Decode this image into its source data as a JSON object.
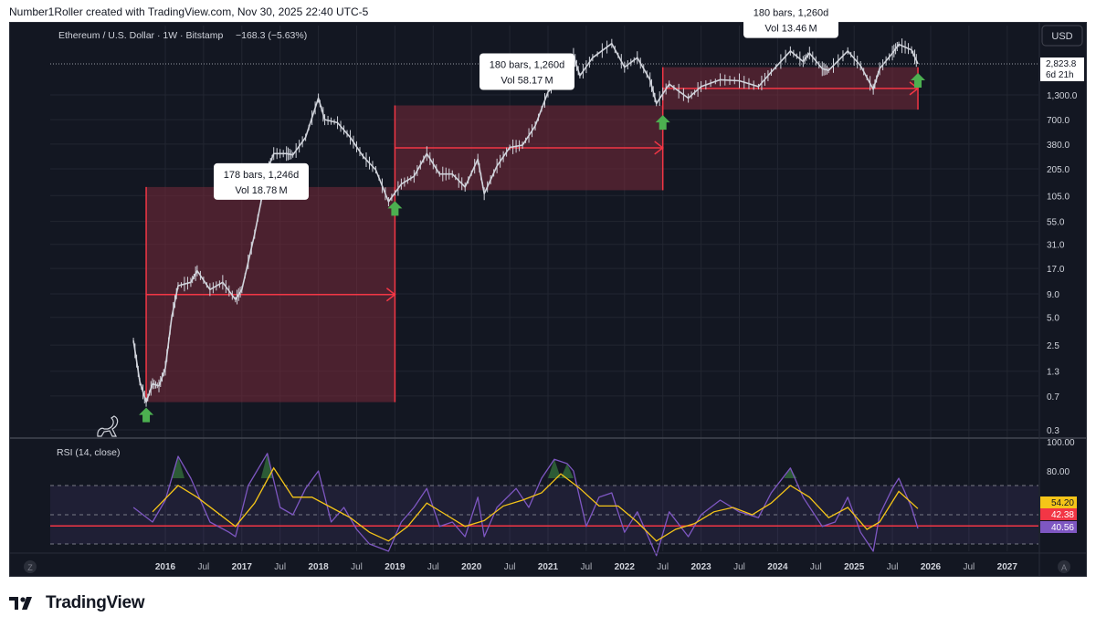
{
  "header": {
    "attribution": "Number1Roller created with TradingView.com, Nov 30, 2025 22:40 UTC-5"
  },
  "chart_header": {
    "symbol_line": "Ethereum / U.S. Dollar · 1W · Bitstamp",
    "change": "−168.3 (−5.63%)"
  },
  "currency_button": "USD",
  "price_tag": {
    "price": "2,823.8",
    "countdown": "6d 21h"
  },
  "rsi_label": "RSI (14, close)",
  "rsi_tags": {
    "rsi_ma": "54.20",
    "level": "42.38",
    "rsi": "40.56"
  },
  "corner_labels": {
    "left": "Z",
    "right": "A"
  },
  "footer": {
    "brand": "TradingView"
  },
  "colors": {
    "background": "#131722",
    "candles": "#d1d4dc",
    "box_fill": "#7a2a3a",
    "box_line": "#f23645",
    "arrow": "#4caf50",
    "rsi_line": "#7e57c2",
    "rsi_ma": "#f5c518",
    "tag_yellow": "#f5c518",
    "tag_red": "#f23645",
    "tag_purple": "#7e57c2"
  },
  "chart_data": [
    {
      "type": "line",
      "title": "Ethereum / U.S. Dollar · 1W · Bitstamp",
      "scale": "log",
      "x_axis_ticks": [
        "2016",
        "Jul",
        "2017",
        "Jul",
        "2018",
        "Jul",
        "2019",
        "Jul",
        "2020",
        "Jul",
        "2021",
        "Jul",
        "2022",
        "Jul",
        "2023",
        "Jul",
        "2024",
        "Jul",
        "2025",
        "Jul",
        "2026",
        "Jul",
        "2027"
      ],
      "y_axis_ticks": [
        "1,300.0",
        "700.0",
        "380.0",
        "205.0",
        "105.0",
        "55.0",
        "31.0",
        "17.0",
        "9.0",
        "5.0",
        "2.5",
        "1.3",
        "0.7",
        "0.3"
      ],
      "last_price": 2823.8,
      "series": [
        {
          "points": [
            [
              "2015-08",
              2.8
            ],
            [
              "2015-09",
              1.0
            ],
            [
              "2015-10",
              0.6
            ],
            [
              "2015-11",
              0.95
            ],
            [
              "2015-12",
              0.9
            ],
            [
              "2016-01",
              1.4
            ],
            [
              "2016-02",
              5.0
            ],
            [
              "2016-03",
              11
            ],
            [
              "2016-05",
              12
            ],
            [
              "2016-06",
              16
            ],
            [
              "2016-08",
              10
            ],
            [
              "2016-10",
              12
            ],
            [
              "2016-12",
              7.8
            ],
            [
              "2017-01",
              10
            ],
            [
              "2017-03",
              40
            ],
            [
              "2017-05",
              200
            ],
            [
              "2017-06",
              300
            ],
            [
              "2017-08",
              300
            ],
            [
              "2017-09",
              290
            ],
            [
              "2017-11",
              450
            ],
            [
              "2018-01",
              1200
            ],
            [
              "2018-02",
              700
            ],
            [
              "2018-04",
              650
            ],
            [
              "2018-06",
              450
            ],
            [
              "2018-08",
              280
            ],
            [
              "2018-10",
              200
            ],
            [
              "2018-12",
              90
            ],
            [
              "2019-02",
              140
            ],
            [
              "2019-04",
              170
            ],
            [
              "2019-06",
              300
            ],
            [
              "2019-08",
              180
            ],
            [
              "2019-10",
              180
            ],
            [
              "2019-12",
              130
            ],
            [
              "2020-02",
              260
            ],
            [
              "2020-03",
              110
            ],
            [
              "2020-05",
              220
            ],
            [
              "2020-07",
              350
            ],
            [
              "2020-09",
              370
            ],
            [
              "2020-11",
              600
            ],
            [
              "2021-01",
              1400
            ],
            [
              "2021-03",
              1900
            ],
            [
              "2021-05",
              3500
            ],
            [
              "2021-06",
              2100
            ],
            [
              "2021-08",
              3300
            ],
            [
              "2021-11",
              4700
            ],
            [
              "2022-01",
              2600
            ],
            [
              "2022-03",
              3300
            ],
            [
              "2022-05",
              1900
            ],
            [
              "2022-06",
              1050
            ],
            [
              "2022-08",
              1700
            ],
            [
              "2022-11",
              1200
            ],
            [
              "2023-01",
              1600
            ],
            [
              "2023-04",
              1900
            ],
            [
              "2023-07",
              1850
            ],
            [
              "2023-10",
              1600
            ],
            [
              "2023-12",
              2300
            ],
            [
              "2024-03",
              3900
            ],
            [
              "2024-05",
              3000
            ],
            [
              "2024-06",
              3700
            ],
            [
              "2024-08",
              2500
            ],
            [
              "2024-09",
              2400
            ],
            [
              "2024-12",
              3900
            ],
            [
              "2025-02",
              2700
            ],
            [
              "2025-04",
              1500
            ],
            [
              "2025-05",
              2500
            ],
            [
              "2025-07",
              3700
            ],
            [
              "2025-08",
              4600
            ],
            [
              "2025-10",
              4000
            ],
            [
              "2025-11",
              2823.8
            ]
          ]
        }
      ],
      "annotations": [
        {
          "type": "date_price_range",
          "start": "2015-10",
          "end": "2019-01",
          "low": 0.6,
          "high": 130,
          "label_bars": "178 bars, 1,246d",
          "label_vol": "Vol 18.78 M"
        },
        {
          "type": "date_price_range",
          "start": "2019-01",
          "end": "2022-07",
          "low": 120,
          "high": 1000,
          "label_bars": "180 bars, 1,260d",
          "label_vol": "Vol 58.17 M"
        },
        {
          "type": "date_price_range",
          "start": "2022-07",
          "end": "2025-11",
          "low": 900,
          "high": 2600,
          "label_bars": "180 bars, 1,260d",
          "label_vol": "Vol 13.46 M"
        }
      ],
      "markers": [
        {
          "type": "up_arrow",
          "date": "2015-10"
        },
        {
          "type": "up_arrow",
          "date": "2019-01"
        },
        {
          "type": "up_arrow",
          "date": "2022-07"
        },
        {
          "type": "up_arrow",
          "date": "2025-11"
        }
      ]
    },
    {
      "type": "line",
      "title": "RSI (14, close)",
      "y_axis_ticks": [
        "100.00",
        "80.00"
      ],
      "ylim": [
        0,
        100
      ],
      "bands": [
        70,
        50,
        30
      ],
      "horizontal_line": 42.38,
      "series": [
        {
          "points": [
            [
              "2015-08",
              55
            ],
            [
              "2015-11",
              45
            ],
            [
              "2016-01",
              60
            ],
            [
              "2016-03",
              90
            ],
            [
              "2016-05",
              75
            ],
            [
              "2016-08",
              45
            ],
            [
              "2016-11",
              38
            ],
            [
              "2016-12",
              35
            ],
            [
              "2017-02",
              70
            ],
            [
              "2017-05",
              92
            ],
            [
              "2017-07",
              55
            ],
            [
              "2017-09",
              50
            ],
            [
              "2017-11",
              68
            ],
            [
              "2018-01",
              80
            ],
            [
              "2018-03",
              45
            ],
            [
              "2018-05",
              55
            ],
            [
              "2018-07",
              40
            ],
            [
              "2018-09",
              30
            ],
            [
              "2018-12",
              25
            ],
            [
              "2019-02",
              45
            ],
            [
              "2019-04",
              55
            ],
            [
              "2019-06",
              68
            ],
            [
              "2019-08",
              42
            ],
            [
              "2019-10",
              45
            ],
            [
              "2019-12",
              35
            ],
            [
              "2020-02",
              62
            ],
            [
              "2020-03",
              35
            ],
            [
              "2020-05",
              55
            ],
            [
              "2020-08",
              68
            ],
            [
              "2020-10",
              55
            ],
            [
              "2020-12",
              75
            ],
            [
              "2021-02",
              88
            ],
            [
              "2021-04",
              85
            ],
            [
              "2021-05",
              80
            ],
            [
              "2021-07",
              42
            ],
            [
              "2021-09",
              62
            ],
            [
              "2021-11",
              65
            ],
            [
              "2022-01",
              38
            ],
            [
              "2022-03",
              52
            ],
            [
              "2022-06",
              22
            ],
            [
              "2022-08",
              52
            ],
            [
              "2022-11",
              35
            ],
            [
              "2023-01",
              50
            ],
            [
              "2023-04",
              60
            ],
            [
              "2023-07",
              52
            ],
            [
              "2023-10",
              48
            ],
            [
              "2023-12",
              65
            ],
            [
              "2024-03",
              82
            ],
            [
              "2024-05",
              62
            ],
            [
              "2024-08",
              42
            ],
            [
              "2024-10",
              45
            ],
            [
              "2024-12",
              62
            ],
            [
              "2025-02",
              38
            ],
            [
              "2025-04",
              25
            ],
            [
              "2025-05",
              50
            ],
            [
              "2025-07",
              68
            ],
            [
              "2025-08",
              75
            ],
            [
              "2025-10",
              55
            ],
            [
              "2025-11",
              40.56
            ]
          ]
        },
        {
          "points": [
            [
              "2015-11",
              52
            ],
            [
              "2016-03",
              70
            ],
            [
              "2016-06",
              62
            ],
            [
              "2016-09",
              52
            ],
            [
              "2016-12",
              42
            ],
            [
              "2017-03",
              58
            ],
            [
              "2017-06",
              82
            ],
            [
              "2017-09",
              62
            ],
            [
              "2017-12",
              62
            ],
            [
              "2018-03",
              55
            ],
            [
              "2018-06",
              48
            ],
            [
              "2018-09",
              38
            ],
            [
              "2018-12",
              32
            ],
            [
              "2019-03",
              42
            ],
            [
              "2019-06",
              58
            ],
            [
              "2019-09",
              50
            ],
            [
              "2019-12",
              42
            ],
            [
              "2020-03",
              46
            ],
            [
              "2020-06",
              56
            ],
            [
              "2020-09",
              60
            ],
            [
              "2020-12",
              65
            ],
            [
              "2021-03",
              78
            ],
            [
              "2021-06",
              68
            ],
            [
              "2021-09",
              56
            ],
            [
              "2021-12",
              56
            ],
            [
              "2022-03",
              45
            ],
            [
              "2022-06",
              32
            ],
            [
              "2022-09",
              40
            ],
            [
              "2022-12",
              44
            ],
            [
              "2023-03",
              52
            ],
            [
              "2023-06",
              55
            ],
            [
              "2023-09",
              50
            ],
            [
              "2023-12",
              58
            ],
            [
              "2024-03",
              70
            ],
            [
              "2024-06",
              62
            ],
            [
              "2024-09",
              48
            ],
            [
              "2024-12",
              55
            ],
            [
              "2025-03",
              40
            ],
            [
              "2025-05",
              45
            ],
            [
              "2025-08",
              66
            ],
            [
              "2025-11",
              54.2
            ]
          ]
        }
      ]
    }
  ]
}
